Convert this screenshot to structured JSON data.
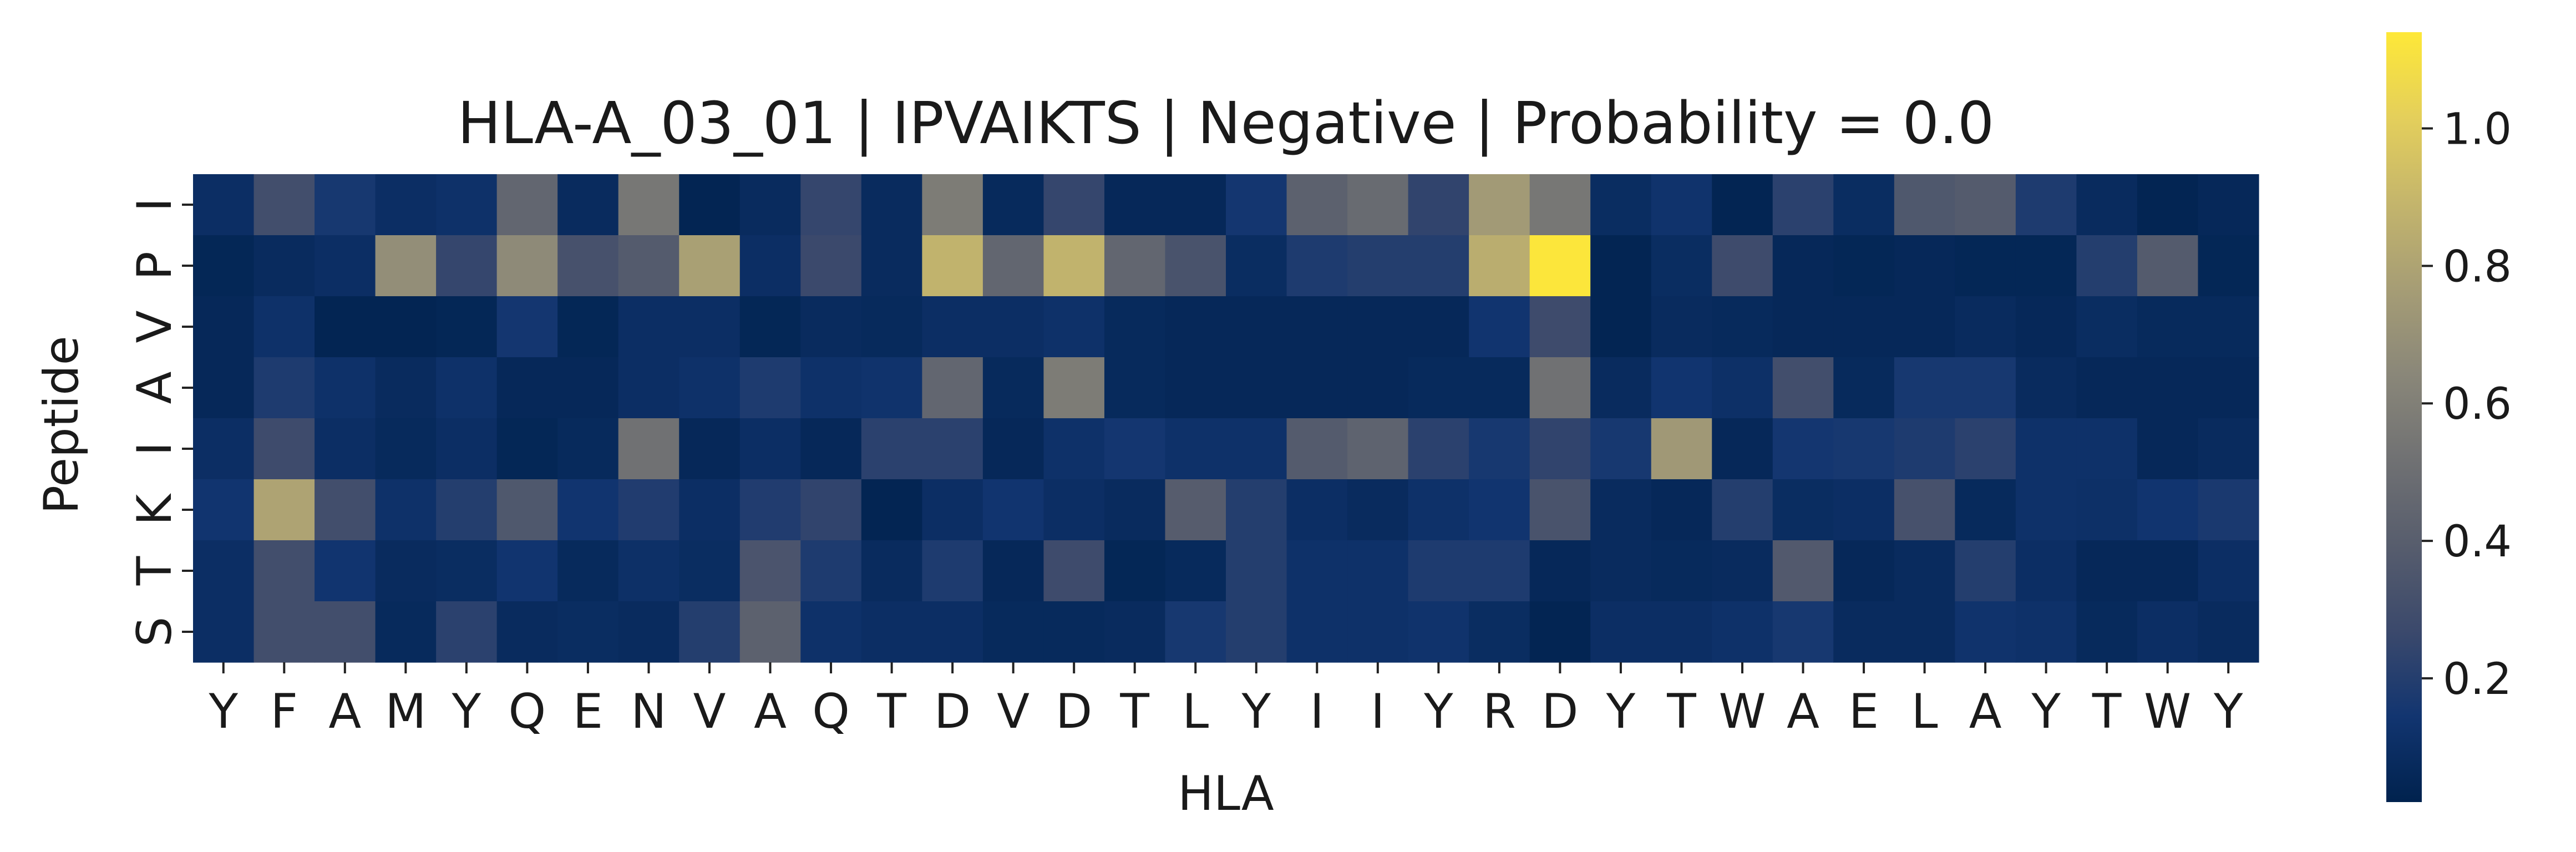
{
  "chart_data": {
    "type": "heatmap",
    "title": "HLA-A_03_01 | IPVAIKTS | Negative | Probability = 0.0",
    "xlabel": "HLA",
    "ylabel": "Peptide",
    "x_categories": [
      "Y",
      "F",
      "A",
      "M",
      "Y",
      "Q",
      "E",
      "N",
      "V",
      "A",
      "Q",
      "T",
      "D",
      "V",
      "D",
      "T",
      "L",
      "Y",
      "I",
      "I",
      "Y",
      "R",
      "D",
      "Y",
      "T",
      "W",
      "A",
      "E",
      "L",
      "A",
      "Y",
      "T",
      "W",
      "Y"
    ],
    "y_categories": [
      "I",
      "P",
      "V",
      "A",
      "I",
      "K",
      "T",
      "S"
    ],
    "values": [
      [
        0.1,
        0.3,
        0.16,
        0.1,
        0.12,
        0.45,
        0.08,
        0.55,
        0.04,
        0.08,
        0.25,
        0.08,
        0.58,
        0.07,
        0.25,
        0.06,
        0.06,
        0.15,
        0.42,
        0.48,
        0.24,
        0.75,
        0.55,
        0.09,
        0.13,
        0.04,
        0.22,
        0.09,
        0.36,
        0.38,
        0.18,
        0.08,
        0.04,
        0.06
      ],
      [
        0.05,
        0.08,
        0.1,
        0.68,
        0.25,
        0.66,
        0.32,
        0.38,
        0.78,
        0.1,
        0.27,
        0.08,
        0.88,
        0.45,
        0.88,
        0.45,
        0.33,
        0.09,
        0.18,
        0.2,
        0.2,
        0.85,
        1.13,
        0.04,
        0.09,
        0.28,
        0.06,
        0.05,
        0.06,
        0.05,
        0.05,
        0.2,
        0.38,
        0.05
      ],
      [
        0.06,
        0.12,
        0.04,
        0.04,
        0.05,
        0.15,
        0.05,
        0.1,
        0.1,
        0.05,
        0.08,
        0.07,
        0.1,
        0.1,
        0.12,
        0.07,
        0.06,
        0.06,
        0.06,
        0.06,
        0.06,
        0.14,
        0.28,
        0.04,
        0.08,
        0.07,
        0.06,
        0.06,
        0.06,
        0.08,
        0.06,
        0.09,
        0.07,
        0.07
      ],
      [
        0.06,
        0.18,
        0.12,
        0.08,
        0.12,
        0.06,
        0.06,
        0.1,
        0.12,
        0.18,
        0.12,
        0.13,
        0.45,
        0.07,
        0.58,
        0.07,
        0.06,
        0.06,
        0.06,
        0.06,
        0.07,
        0.07,
        0.52,
        0.08,
        0.14,
        0.11,
        0.3,
        0.07,
        0.16,
        0.16,
        0.08,
        0.06,
        0.06,
        0.06
      ],
      [
        0.1,
        0.28,
        0.1,
        0.07,
        0.1,
        0.05,
        0.07,
        0.52,
        0.06,
        0.1,
        0.06,
        0.22,
        0.22,
        0.06,
        0.12,
        0.15,
        0.12,
        0.12,
        0.38,
        0.43,
        0.22,
        0.16,
        0.24,
        0.16,
        0.74,
        0.06,
        0.15,
        0.16,
        0.18,
        0.22,
        0.12,
        0.12,
        0.06,
        0.08
      ],
      [
        0.14,
        0.8,
        0.3,
        0.12,
        0.2,
        0.36,
        0.14,
        0.19,
        0.1,
        0.19,
        0.24,
        0.04,
        0.1,
        0.14,
        0.1,
        0.08,
        0.39,
        0.2,
        0.1,
        0.08,
        0.12,
        0.14,
        0.33,
        0.08,
        0.06,
        0.2,
        0.09,
        0.1,
        0.32,
        0.07,
        0.12,
        0.11,
        0.14,
        0.17
      ],
      [
        0.1,
        0.3,
        0.14,
        0.08,
        0.09,
        0.14,
        0.07,
        0.11,
        0.09,
        0.34,
        0.18,
        0.08,
        0.18,
        0.06,
        0.28,
        0.05,
        0.07,
        0.2,
        0.12,
        0.12,
        0.18,
        0.18,
        0.06,
        0.08,
        0.07,
        0.08,
        0.37,
        0.06,
        0.08,
        0.2,
        0.1,
        0.06,
        0.06,
        0.1
      ],
      [
        0.1,
        0.3,
        0.3,
        0.07,
        0.22,
        0.08,
        0.09,
        0.08,
        0.2,
        0.42,
        0.12,
        0.1,
        0.1,
        0.07,
        0.07,
        0.08,
        0.16,
        0.2,
        0.12,
        0.12,
        0.13,
        0.09,
        0.04,
        0.1,
        0.1,
        0.12,
        0.16,
        0.08,
        0.08,
        0.13,
        0.12,
        0.07,
        0.1,
        0.08
      ]
    ],
    "colormap": "cividis",
    "colormap_stops": [
      "#00224e",
      "#123570",
      "#3b496c",
      "#575d6d",
      "#707173",
      "#8a8779",
      "#a69d75",
      "#c4b56c",
      "#e4cf5b",
      "#fee838"
    ],
    "vmin": 0.02,
    "vmax": 1.14,
    "colorbar_ticks": [
      "0.2",
      "0.4",
      "0.6",
      "0.8",
      "1.0"
    ]
  }
}
